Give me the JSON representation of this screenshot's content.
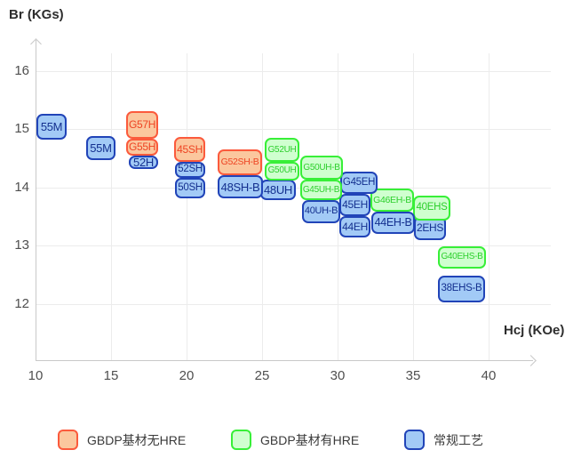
{
  "titles": {
    "y_axis": "Br (KGs)",
    "x_axis": "Hcj (KOe)"
  },
  "legend": [
    {
      "series": "none_hre",
      "label": "GBDP基材无HRE"
    },
    {
      "series": "with_hre",
      "label": "GBDP基材有HRE"
    },
    {
      "series": "regular",
      "label": "常规工艺"
    }
  ],
  "series_styles": {
    "none_hre": {
      "fill": "#FBC79E",
      "border": "#FB5A3C",
      "text": "#EE4423"
    },
    "with_hre": {
      "fill": "#CFFFCF",
      "border": "#38EF38",
      "text": "#2CCF2C"
    },
    "regular": {
      "fill": "#A2CAF6",
      "border": "#2144B8",
      "text": "#14308F"
    }
  },
  "chart_data": {
    "type": "scatter",
    "title": "",
    "xlabel": "Hcj (KOe)",
    "ylabel": "Br (KGs)",
    "xlim": [
      10,
      43
    ],
    "ylim": [
      11.5,
      16.5
    ],
    "x_ticks": [
      10,
      15,
      20,
      25,
      30,
      35,
      40
    ],
    "y_ticks": [
      16,
      15,
      14,
      13,
      12
    ],
    "grid": true,
    "legend_position": "bottom",
    "items": [
      {
        "label": "38EHS-B",
        "series": "regular",
        "hcj": [
          36.65,
          39.76
        ],
        "br": [
          12.02,
          12.48
        ]
      },
      {
        "label": "G40EHS-B",
        "series": "with_hre",
        "hcj": [
          36.65,
          39.82
        ],
        "br": [
          12.61,
          12.99
        ]
      },
      {
        "label": "2EHS",
        "series": "regular",
        "hcj": [
          35.06,
          37.18
        ],
        "br": [
          13.1,
          13.51
        ]
      },
      {
        "label": "40EHS",
        "series": "with_hre",
        "hcj": [
          35.0,
          37.47
        ],
        "br": [
          13.43,
          13.86
        ]
      },
      {
        "label": "44EH-B",
        "series": "regular",
        "hcj": [
          32.24,
          35.12
        ],
        "br": [
          13.2,
          13.58
        ]
      },
      {
        "label": "G46EH-B",
        "series": "with_hre",
        "hcj": [
          32.18,
          35.06
        ],
        "br": [
          13.58,
          13.98
        ]
      },
      {
        "label": "44EH",
        "series": "regular",
        "hcj": [
          30.12,
          32.18
        ],
        "br": [
          13.14,
          13.51
        ]
      },
      {
        "label": "45EH",
        "series": "regular",
        "hcj": [
          30.12,
          32.18
        ],
        "br": [
          13.51,
          13.89
        ]
      },
      {
        "label": "G45EH",
        "series": "regular",
        "hcj": [
          30.18,
          32.65
        ],
        "br": [
          13.89,
          14.27
        ]
      },
      {
        "label": "40UH-B",
        "series": "regular",
        "hcj": [
          27.65,
          30.18
        ],
        "br": [
          13.39,
          13.78
        ]
      },
      {
        "label": "G45UH-B",
        "series": "with_hre",
        "hcj": [
          27.53,
          30.29
        ],
        "br": [
          13.78,
          14.13
        ]
      },
      {
        "label": "G50UH-B",
        "series": "with_hre",
        "hcj": [
          27.53,
          30.35
        ],
        "br": [
          14.13,
          14.55
        ]
      },
      {
        "label": "48UH",
        "series": "regular",
        "hcj": [
          24.88,
          27.24
        ],
        "br": [
          13.78,
          14.13
        ]
      },
      {
        "label": "G50UH",
        "series": "with_hre",
        "hcj": [
          25.18,
          27.47
        ],
        "br": [
          14.12,
          14.44
        ]
      },
      {
        "label": "G52UH",
        "series": "with_hre",
        "hcj": [
          25.18,
          27.47
        ],
        "br": [
          14.44,
          14.85
        ]
      },
      {
        "label": "48SH-B",
        "series": "regular",
        "hcj": [
          22.06,
          25.06
        ],
        "br": [
          13.81,
          14.21
        ]
      },
      {
        "label": "G52SH-B",
        "series": "none_hre",
        "hcj": [
          22.06,
          25.0
        ],
        "br": [
          14.21,
          14.65
        ]
      },
      {
        "label": "50SH",
        "series": "regular",
        "hcj": [
          19.24,
          21.24
        ],
        "br": [
          13.81,
          14.17
        ]
      },
      {
        "label": "52SH",
        "series": "regular",
        "hcj": [
          19.24,
          21.24
        ],
        "br": [
          14.17,
          14.44
        ]
      },
      {
        "label": "45SH",
        "series": "none_hre",
        "hcj": [
          19.18,
          21.24
        ],
        "br": [
          14.44,
          14.87
        ]
      },
      {
        "label": "52H",
        "series": "regular",
        "hcj": [
          16.18,
          18.12
        ],
        "br": [
          14.32,
          14.55
        ]
      },
      {
        "label": "G55H",
        "series": "none_hre",
        "hcj": [
          16.0,
          18.12
        ],
        "br": [
          14.55,
          14.84
        ]
      },
      {
        "label": "G57H",
        "series": "none_hre",
        "hcj": [
          16.0,
          18.12
        ],
        "br": [
          14.84,
          15.31
        ]
      },
      {
        "label": "55M",
        "series": "regular",
        "hcj": [
          13.35,
          15.29
        ],
        "br": [
          14.47,
          14.88
        ]
      },
      {
        "label": "55M",
        "series": "regular",
        "hcj": [
          10.06,
          12.06
        ],
        "br": [
          14.82,
          15.27
        ]
      }
    ]
  }
}
